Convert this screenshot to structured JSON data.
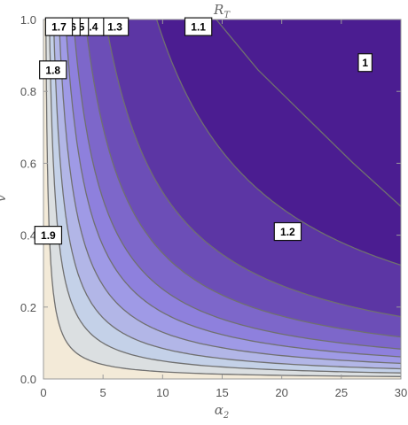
{
  "chart_data": {
    "type": "contour",
    "title": "R_T",
    "title_main": "R",
    "title_sub": "T",
    "xlabel": "α",
    "xlabel_sub": "2",
    "ylabel": "v",
    "xlim": [
      0,
      30
    ],
    "ylim": [
      0,
      1
    ],
    "x_ticks": [
      0,
      5,
      10,
      15,
      20,
      25,
      30
    ],
    "x_tick_labels": [
      "0",
      "5",
      "10",
      "15",
      "20",
      "25",
      "30"
    ],
    "y_ticks": [
      0,
      0.2,
      0.4,
      0.6,
      0.8,
      1.0
    ],
    "y_tick_labels": [
      "0.0",
      "0.2",
      "0.4",
      "0.6",
      "0.8",
      "1.0"
    ],
    "contour_levels": [
      {
        "value": 1.1,
        "alpha_v_product": 9.5
      },
      {
        "value": 1.2,
        "alpha_v_product": 5.2
      },
      {
        "value": 1.3,
        "alpha_v_product": 3.5
      },
      {
        "value": 1.4,
        "alpha_v_product": 2.5
      },
      {
        "value": 1.5,
        "alpha_v_product": 1.85
      },
      {
        "value": 1.6,
        "alpha_v_product": 1.3
      },
      {
        "value": 1.7,
        "alpha_v_product": 0.85
      },
      {
        "value": 1.8,
        "alpha_v_product": 0.5
      },
      {
        "value": 1.9,
        "alpha_v_product": 0.2
      }
    ],
    "level_1_boundary": {
      "value": 1.0,
      "x": [
        14.5,
        18,
        22,
        26,
        30
      ],
      "y": [
        1.0,
        0.86,
        0.73,
        0.6,
        0.48
      ]
    },
    "contour_labels": [
      {
        "text": "1",
        "x": 27,
        "y": 0.88
      },
      {
        "text": "1.1",
        "x": 13,
        "y": 0.98
      },
      {
        "text": "1.2",
        "x": 20.5,
        "y": 0.41
      },
      {
        "text": "1.3",
        "x": 6.0,
        "y": 0.98
      },
      {
        "text": ".4",
        "x": 4.2,
        "y": 0.98
      },
      {
        "text": "5",
        "x": 3.2,
        "y": 0.98
      },
      {
        "text": "6",
        "x": 2.5,
        "y": 0.98
      },
      {
        "text": "1.7",
        "x": 1.3,
        "y": 0.98
      },
      {
        "text": "1.8",
        "x": 0.8,
        "y": 0.86
      },
      {
        "text": "1.9",
        "x": 0.4,
        "y": 0.4
      }
    ],
    "colors": {
      "lowest": "#4b1d91",
      "highest": "#f3ead8",
      "contour_line": "#707070",
      "frame": "#9a9a9a"
    }
  }
}
